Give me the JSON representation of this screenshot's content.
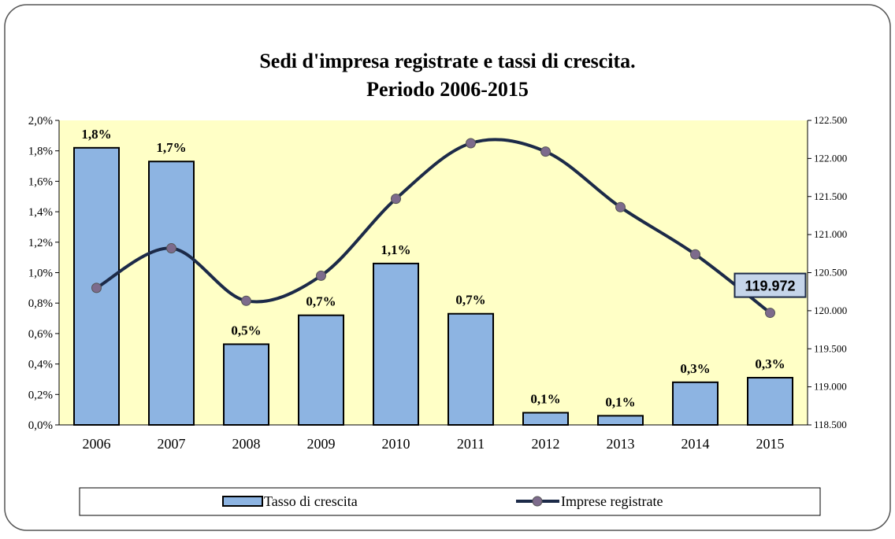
{
  "chart_data": {
    "type": "bar-line",
    "title": "Sedi d'impresa registrate e tassi di crescita.",
    "subtitle": "Periodo 2006-2015",
    "categories": [
      "2006",
      "2007",
      "2008",
      "2009",
      "2010",
      "2011",
      "2012",
      "2013",
      "2014",
      "2015"
    ],
    "series": [
      {
        "name": "Tasso di crescita",
        "type": "bar",
        "color": "#8db4e2",
        "values": [
          1.82,
          1.73,
          0.53,
          0.72,
          1.06,
          0.73,
          0.08,
          0.06,
          0.28,
          0.31
        ],
        "value_labels": [
          "1,8%",
          "1,7%",
          "0,5%",
          "0,7%",
          "1,1%",
          "0,7%",
          "0,1%",
          "0,1%",
          "0,3%",
          "0,3%"
        ]
      },
      {
        "name": "Imprese registrate",
        "type": "line",
        "axis": "y2",
        "color": "#1c2a48",
        "marker_color": "#7d6b8c",
        "values": [
          120300,
          120820,
          120130,
          120460,
          121470,
          122200,
          122090,
          121360,
          120740,
          119972
        ],
        "value_labels": [
          null,
          null,
          null,
          null,
          null,
          null,
          null,
          null,
          null,
          "119.972"
        ]
      }
    ],
    "ylim": [
      0,
      2
    ],
    "yticks": [
      {
        "value": 0,
        "label": "0,0%"
      },
      {
        "value": 0.2,
        "label": "0,2%"
      },
      {
        "value": 0.4,
        "label": "0,4%"
      },
      {
        "value": 0.6,
        "label": "0,6%"
      },
      {
        "value": 0.8,
        "label": "0,8%"
      },
      {
        "value": 1.0,
        "label": "1,0%"
      },
      {
        "value": 1.2,
        "label": "1,2%"
      },
      {
        "value": 1.4,
        "label": "1,4%"
      },
      {
        "value": 1.6,
        "label": "1,6%"
      },
      {
        "value": 1.8,
        "label": "1,8%"
      },
      {
        "value": 2.0,
        "label": "2,0%"
      }
    ],
    "y2lim": [
      118500,
      122500
    ],
    "y2ticks": [
      {
        "value": 118500,
        "label": "118.500"
      },
      {
        "value": 119000,
        "label": "119.000"
      },
      {
        "value": 119500,
        "label": "119.500"
      },
      {
        "value": 120000,
        "label": "120.000"
      },
      {
        "value": 120500,
        "label": "120.500"
      },
      {
        "value": 121000,
        "label": "121.000"
      },
      {
        "value": 121500,
        "label": "121.500"
      },
      {
        "value": 122000,
        "label": "122.000"
      },
      {
        "value": 122500,
        "label": "122.500"
      }
    ],
    "plot_background": "#ffffc6",
    "legend": "bottom"
  }
}
